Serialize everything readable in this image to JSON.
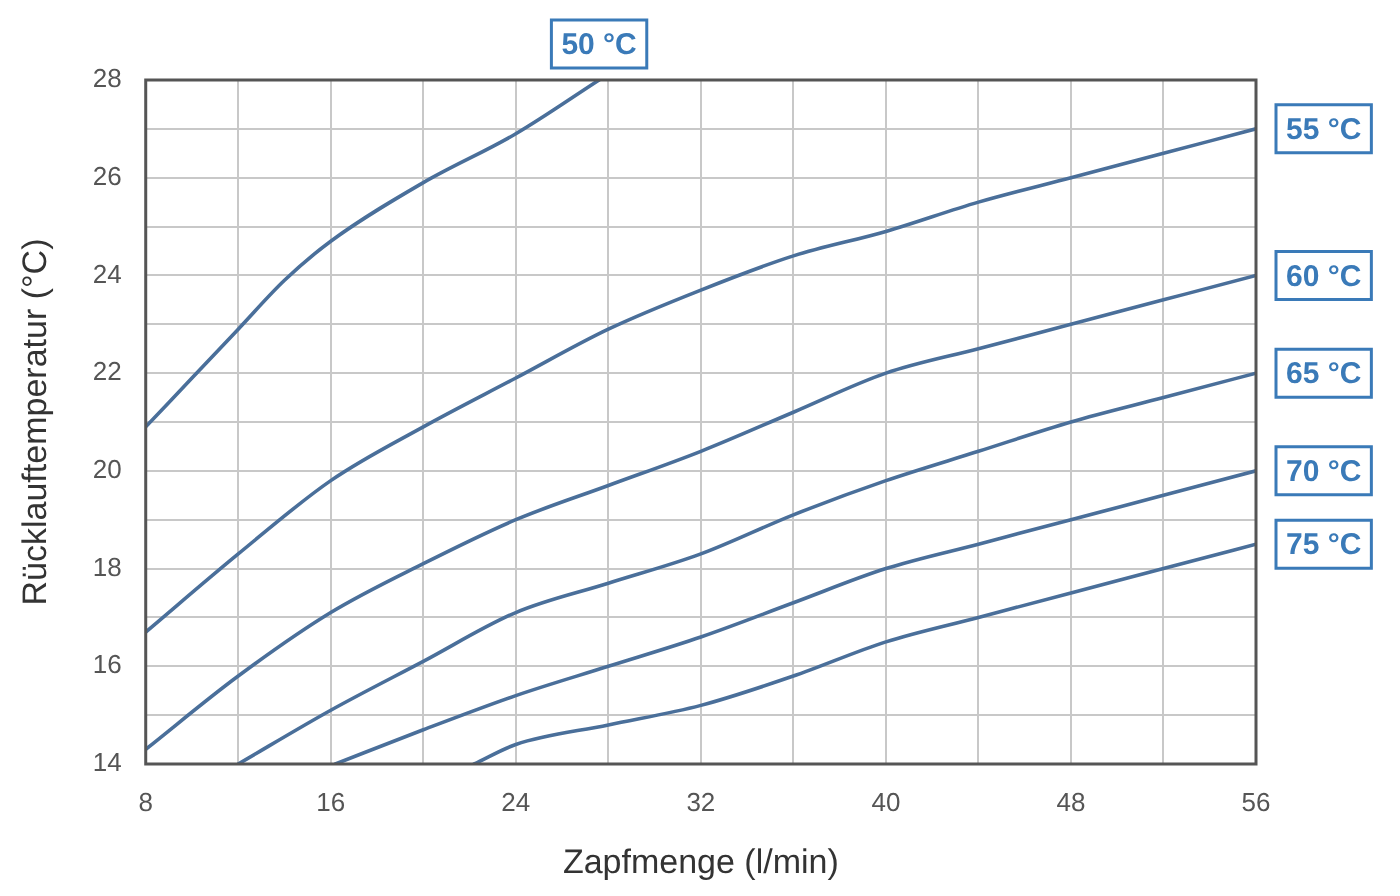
{
  "chart_data": {
    "type": "line",
    "xlabel": "Zapfmenge (l/min)",
    "ylabel": "Rücklauftemperatur (°C)",
    "xlim": [
      8,
      56
    ],
    "ylim": [
      14,
      28
    ],
    "xticks": [
      8,
      {
        "value": 12,
        "label": null
      },
      16,
      {
        "value": 20,
        "label": null
      },
      24,
      {
        "value": 28,
        "label": null
      },
      32,
      {
        "value": 36,
        "label": null
      },
      40,
      {
        "value": 44,
        "label": null
      },
      48,
      {
        "value": 52,
        "label": null
      },
      56
    ],
    "yticks": [
      14,
      {
        "value": 15,
        "label": null
      },
      16,
      {
        "value": 17,
        "label": null
      },
      18,
      {
        "value": 19,
        "label": null
      },
      20,
      {
        "value": 21,
        "label": null
      },
      22,
      {
        "value": 23,
        "label": null
      },
      24,
      {
        "value": 25,
        "label": null
      },
      26,
      {
        "value": 27,
        "label": null
      },
      28
    ],
    "grid": true,
    "legend": false,
    "marker": "none",
    "line_style": "solid",
    "series": [
      {
        "name": "50 °C",
        "color": "#4a6f9a",
        "x": [
          8,
          10,
          12,
          14,
          16,
          20,
          24,
          27.6
        ],
        "values": [
          20.9,
          21.9,
          22.9,
          23.9,
          24.7,
          25.9,
          26.9,
          28
        ]
      },
      {
        "name": "55 °C",
        "color": "#4a6f9a",
        "x": [
          8,
          12,
          16,
          20,
          24,
          28,
          32,
          36,
          40,
          44,
          48,
          52,
          56
        ],
        "values": [
          16.7,
          18.3,
          19.8,
          20.9,
          21.9,
          22.9,
          23.7,
          24.4,
          24.9,
          25.5,
          26,
          26.5,
          27
        ]
      },
      {
        "name": "60 °C",
        "color": "#4a6f9a",
        "x": [
          8,
          12,
          16,
          20,
          24,
          28,
          32,
          36,
          40,
          44,
          48,
          52,
          56
        ],
        "values": [
          14.3,
          15.8,
          17.1,
          18.1,
          19,
          19.7,
          20.4,
          21.2,
          22,
          22.5,
          23,
          23.5,
          24
        ]
      },
      {
        "name": "65 °C",
        "color": "#4a6f9a",
        "x": [
          12,
          16,
          20,
          24,
          28,
          32,
          36,
          40,
          44,
          48,
          52,
          56
        ],
        "values": [
          14,
          15.1,
          16.1,
          17.1,
          17.7,
          18.3,
          19.1,
          19.8,
          20.4,
          21,
          21.5,
          22
        ]
      },
      {
        "name": "70 °C",
        "color": "#4a6f9a",
        "x": [
          16.2,
          20,
          24,
          28,
          32,
          36,
          40,
          44,
          48,
          52,
          56
        ],
        "values": [
          14,
          14.7,
          15.4,
          16,
          16.6,
          17.3,
          18,
          18.5,
          19,
          19.5,
          20
        ]
      },
      {
        "name": "75 °C",
        "color": "#4a6f9a",
        "x": [
          22.2,
          24,
          28,
          32,
          36,
          40,
          44,
          48,
          52,
          56
        ],
        "values": [
          14,
          14.4,
          14.8,
          15.2,
          15.8,
          16.5,
          17,
          17.5,
          18,
          18.5
        ]
      }
    ]
  }
}
